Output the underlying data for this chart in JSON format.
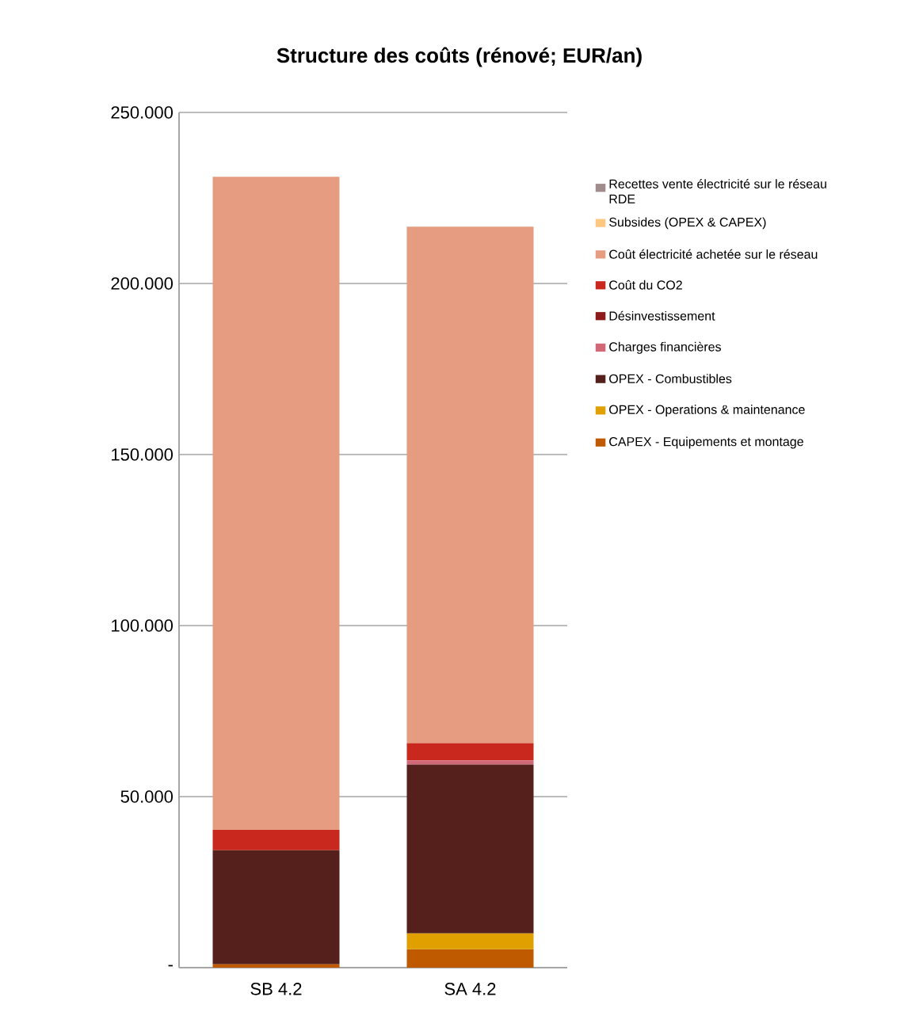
{
  "chart_data": {
    "type": "bar",
    "stacked": true,
    "title": "Structure des coûts (rénové; EUR/an)",
    "categories": [
      "SB 4.2",
      "SA 4.2"
    ],
    "series": [
      {
        "name": "CAPEX - Equipements et montage",
        "color": "#c05a00",
        "values": [
          1.0,
          5.4
        ]
      },
      {
        "name": "OPEX - Operations & maintenance",
        "color": "#e0a000",
        "values": [
          0,
          4.6
        ]
      },
      {
        "name": "OPEX - Combustibles",
        "color": "#55201c",
        "values": [
          33.3,
          49.4
        ]
      },
      {
        "name": "Charges financières",
        "color": "#d06878",
        "values": [
          0,
          1.2
        ]
      },
      {
        "name": "Désinvestissement",
        "color": "#8c1a1a",
        "values": [
          0,
          0
        ]
      },
      {
        "name": "Coût du CO2",
        "color": "#c8281e",
        "values": [
          6.0,
          5.0
        ]
      },
      {
        "name": "Coût électricité achetée sur le réseau",
        "color": "#e59c80",
        "values": [
          190.9,
          151.0
        ]
      },
      {
        "name": "Subsides (OPEX & CAPEX)",
        "color": "#ffc880",
        "values": [
          0,
          0
        ]
      },
      {
        "name": "Recettes vente électricité sur le réseau RDE",
        "color": "#a08c8c",
        "values": [
          0,
          0
        ]
      }
    ],
    "ylim": [
      0,
      250
    ],
    "yticks": [
      {
        "value": 0,
        "label": "-"
      },
      {
        "value": 50,
        "label": "50.000"
      },
      {
        "value": 100,
        "label": "100.000"
      },
      {
        "value": 150,
        "label": "150.000"
      },
      {
        "value": 200,
        "label": "200.000"
      },
      {
        "value": 250,
        "label": "250.000"
      }
    ],
    "grid": "y",
    "legend": "right"
  }
}
